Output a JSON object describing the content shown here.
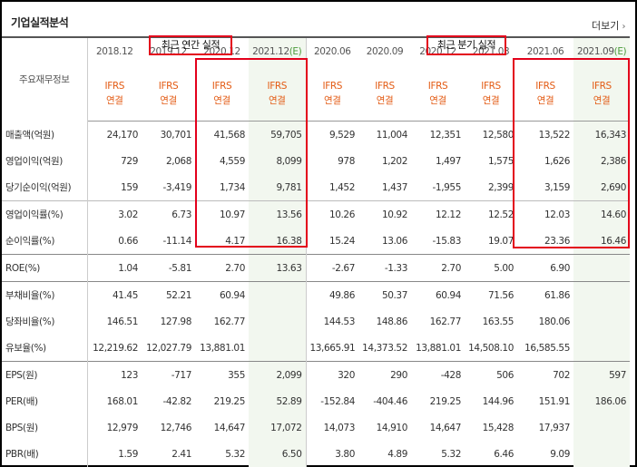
{
  "section_title": "기업실적분석",
  "more_label": "더보기",
  "annual_label": "최근 연간 실적",
  "quarterly_label": "최근 분기 실적",
  "row_header_label": "주요재무정보",
  "periods": [
    "2018.12",
    "2019.12",
    "2020.12",
    "2021.12(E)",
    "2020.06",
    "2020.09",
    "2020.12",
    "2021.03",
    "2021.06",
    "2021.09(E)"
  ],
  "ifrs_top": "IFRS",
  "ifrs_bottom": "연결",
  "rows": [
    {
      "label": "매출액(억원)",
      "values": [
        "24,170",
        "30,701",
        "41,568",
        "59,705",
        "9,529",
        "11,004",
        "12,351",
        "12,580",
        "13,522",
        "16,343"
      ]
    },
    {
      "label": "영업이익(억원)",
      "values": [
        "729",
        "2,068",
        "4,559",
        "8,099",
        "978",
        "1,202",
        "1,497",
        "1,575",
        "1,626",
        "2,386"
      ]
    },
    {
      "label": "당기순이익(억원)",
      "values": [
        "159",
        "-3,419",
        "1,734",
        "9,781",
        "1,452",
        "1,437",
        "-1,955",
        "2,399",
        "3,159",
        "2,690"
      ]
    },
    {
      "label": "영업이익률(%)",
      "values": [
        "3.02",
        "6.73",
        "10.97",
        "13.56",
        "10.26",
        "10.92",
        "12.12",
        "12.52",
        "12.03",
        "14.60"
      ]
    },
    {
      "label": "순이익률(%)",
      "values": [
        "0.66",
        "-11.14",
        "4.17",
        "16.38",
        "15.24",
        "13.06",
        "-15.83",
        "19.07",
        "23.36",
        "16.46"
      ]
    },
    {
      "label": "ROE(%)",
      "values": [
        "1.04",
        "-5.81",
        "2.70",
        "13.63",
        "-2.67",
        "-1.33",
        "2.70",
        "5.00",
        "6.90",
        ""
      ]
    },
    {
      "label": "부채비율(%)",
      "values": [
        "41.45",
        "52.21",
        "60.94",
        "",
        "49.86",
        "50.37",
        "60.94",
        "71.56",
        "61.86",
        ""
      ]
    },
    {
      "label": "당좌비율(%)",
      "values": [
        "146.51",
        "127.98",
        "162.77",
        "",
        "144.53",
        "148.86",
        "162.77",
        "163.55",
        "180.06",
        ""
      ]
    },
    {
      "label": "유보율(%)",
      "values": [
        "12,219.62",
        "12,027.79",
        "13,881.01",
        "",
        "13,665.91",
        "14,373.52",
        "13,881.01",
        "14,508.10",
        "16,585.55",
        ""
      ]
    },
    {
      "label": "EPS(원)",
      "values": [
        "123",
        "-717",
        "355",
        "2,099",
        "320",
        "290",
        "-428",
        "506",
        "702",
        "597"
      ]
    },
    {
      "label": "PER(배)",
      "values": [
        "168.01",
        "-42.82",
        "219.25",
        "52.89",
        "-152.84",
        "-404.46",
        "219.25",
        "144.96",
        "151.91",
        "186.06"
      ]
    },
    {
      "label": "BPS(원)",
      "values": [
        "12,979",
        "12,746",
        "14,647",
        "17,072",
        "14,073",
        "14,910",
        "14,647",
        "15,428",
        "17,937",
        ""
      ]
    },
    {
      "label": "PBR(배)",
      "values": [
        "1.59",
        "2.41",
        "5.32",
        "6.50",
        "3.80",
        "4.89",
        "5.32",
        "6.46",
        "9.09",
        ""
      ]
    }
  ],
  "colors": {
    "negative": "#e8102a",
    "ifrs": "#e35b14",
    "highlight_box": "#e3001b",
    "estimate_bg": "#f2f7ef"
  }
}
